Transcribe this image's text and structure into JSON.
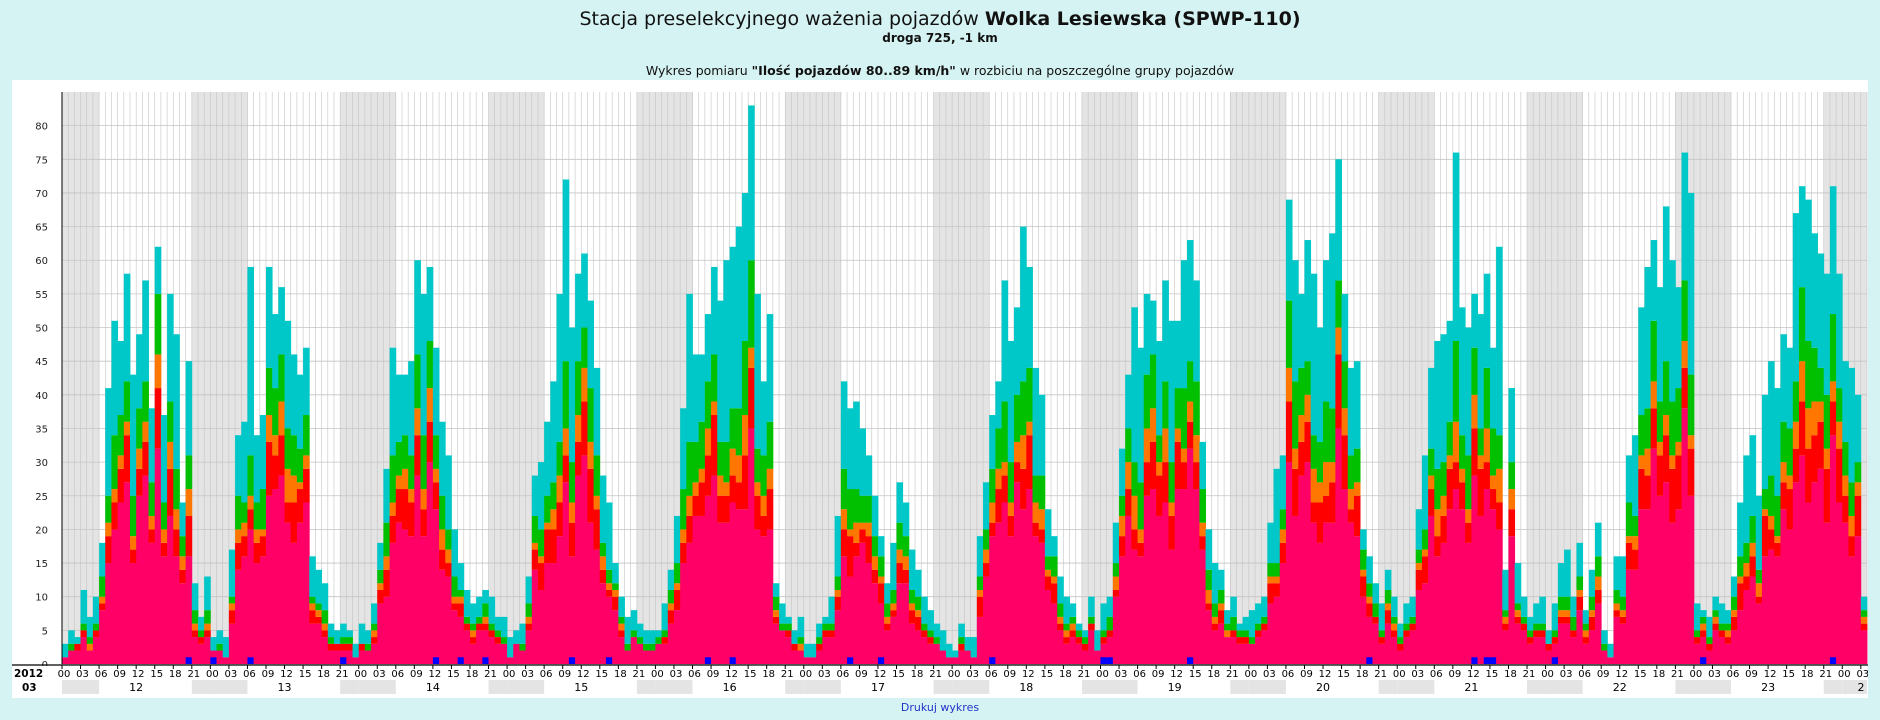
{
  "header": {
    "title_prefix": "Stacja preselekcyjnego ważenia pojazdów",
    "title_bold": "Wolka Lesiewska (SPWP-110)",
    "subtitle": "droga 725, -1 km",
    "desc_prefix": "Wykres pomiaru",
    "desc_bold": "\"Ilość pojazdów 80..89 km/h\"",
    "desc_suffix": "w rozbiciu na poszczególne grupy pojazdów"
  },
  "footer": {
    "print_label": "Drukuj wykres"
  },
  "colors": {
    "magenta": "#ff0066",
    "red": "#ff0000",
    "orange": "#ff7700",
    "green": "#00c000",
    "darkgreen": "#006600",
    "cyan": "#00c8c8",
    "blue": "#0000ff",
    "night_shade": "#e4e4e4",
    "grid": "#c4c4c4"
  },
  "chart_data": {
    "type": "bar",
    "stacked": true,
    "ylim": [
      0,
      85
    ],
    "y_ticks": [
      0,
      5,
      10,
      15,
      20,
      25,
      30,
      35,
      40,
      45,
      50,
      55,
      60,
      65,
      70,
      75,
      80
    ],
    "x_unit": "hour",
    "start": "2012-03-12 00:00",
    "year_label": "2012",
    "month_label": "03",
    "days": [
      "12",
      "13",
      "14",
      "15",
      "16",
      "17",
      "18",
      "19",
      "20",
      "21",
      "22",
      "23",
      "2"
    ],
    "hour_tick_labels": [
      "00",
      "03",
      "06",
      "09",
      "12",
      "15",
      "18",
      "21"
    ],
    "night_shading": "21:00–06:00",
    "series_names": [
      "magenta",
      "red",
      "orange",
      "green",
      "cyan",
      "blue"
    ],
    "series_stack_order": [
      "magenta",
      "red",
      "orange",
      "green",
      "cyan"
    ],
    "totals": [
      3,
      5,
      4,
      11,
      7,
      10,
      18,
      41,
      51,
      48,
      58,
      43,
      49,
      57,
      38,
      62,
      37,
      55,
      49,
      24,
      45,
      12,
      7,
      13,
      4,
      5,
      4,
      17,
      34,
      36,
      59,
      34,
      37,
      59,
      52,
      56,
      51,
      46,
      43,
      47,
      16,
      14,
      12,
      6,
      5,
      6,
      5,
      3,
      6,
      5,
      9,
      18,
      29,
      47,
      43,
      43,
      45,
      60,
      55,
      59,
      47,
      36,
      31,
      20,
      15,
      11,
      9,
      10,
      11,
      10,
      7,
      7,
      4,
      5,
      6,
      13,
      28,
      30,
      36,
      42,
      55,
      72,
      50,
      58,
      61,
      54,
      44,
      28,
      24,
      15,
      10,
      7,
      8,
      6,
      5,
      5,
      5,
      9,
      14,
      22,
      38,
      55,
      46,
      46,
      52,
      59,
      54,
      60,
      62,
      65,
      70,
      83,
      55,
      42,
      52,
      12,
      9,
      7,
      5,
      7,
      3,
      3,
      6,
      7,
      10,
      22,
      42,
      38,
      39,
      35,
      31,
      25,
      19,
      12,
      18,
      27,
      24,
      17,
      14,
      10,
      8,
      6,
      5,
      3,
      2,
      6,
      4,
      4,
      19,
      27,
      37,
      42,
      57,
      48,
      53,
      65,
      59,
      44,
      40,
      23,
      19,
      13,
      10,
      9,
      6,
      5,
      10,
      5,
      9,
      10,
      21,
      32,
      43,
      53,
      47,
      55,
      54,
      48,
      57,
      51,
      51,
      60,
      63,
      57,
      33,
      20,
      15,
      14,
      8,
      10,
      6,
      7,
      8,
      9,
      10,
      21,
      29,
      31,
      69,
      60,
      55,
      63,
      58,
      50,
      60,
      64,
      75,
      55,
      44,
      45,
      20,
      16,
      12,
      9,
      14,
      10,
      6,
      9,
      10,
      23,
      31,
      44,
      48,
      49,
      51,
      76,
      53,
      50,
      55,
      52,
      58,
      47,
      62,
      14,
      41,
      15,
      10,
      7,
      9,
      10,
      5,
      9,
      15,
      17,
      10,
      18,
      8,
      14,
      21,
      5,
      3,
      16,
      16,
      31,
      34,
      53,
      59,
      63,
      56,
      68,
      60,
      56,
      76,
      70,
      9,
      8,
      7,
      10,
      9,
      8,
      13,
      24,
      31,
      34,
      25,
      40,
      45,
      41,
      49,
      47,
      67,
      71,
      69,
      64,
      61,
      58,
      71,
      58,
      45,
      44,
      40,
      10
    ],
    "composition": {
      "magenta_share": 0.42,
      "red_share": 0.1,
      "orange_share": 0.06,
      "green_share": 0.12,
      "cyan_share": "remainder"
    }
  }
}
